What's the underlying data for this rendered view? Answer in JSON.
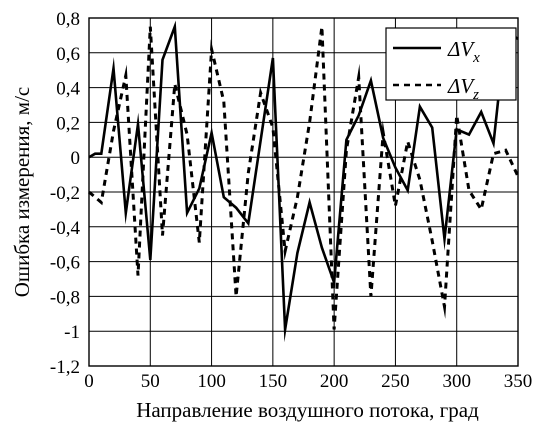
{
  "chart_data": {
    "type": "line",
    "xlabel": "Направление воздушного потока, град",
    "ylabel": "Ошибка измерения, м/с",
    "xlim": [
      0,
      350
    ],
    "ylim": [
      -1.2,
      0.8
    ],
    "x_ticks": [
      "0",
      "50",
      "100",
      "150",
      "200",
      "250",
      "300",
      "350"
    ],
    "y_ticks": [
      "0,8",
      "0,6",
      "0,4",
      "0,2",
      "0",
      "-0,2",
      "-0,4",
      "-0,6",
      "-0,8",
      "-1",
      "-1,2"
    ],
    "grid": true,
    "legend_position": "top-right",
    "series": [
      {
        "name": "ΔVx",
        "style": "solid",
        "color": "#000000",
        "points": [
          [
            0,
            0.0
          ],
          [
            5,
            0.02
          ],
          [
            10,
            0.02
          ],
          [
            20,
            0.51
          ],
          [
            30,
            -0.32
          ],
          [
            40,
            0.19
          ],
          [
            50,
            -0.59
          ],
          [
            60,
            0.56
          ],
          [
            70,
            0.75
          ],
          [
            80,
            -0.32
          ],
          [
            90,
            -0.18
          ],
          [
            100,
            0.14
          ],
          [
            110,
            -0.23
          ],
          [
            120,
            -0.29
          ],
          [
            130,
            -0.38
          ],
          [
            150,
            0.57
          ],
          [
            160,
            -0.99
          ],
          [
            170,
            -0.55
          ],
          [
            180,
            -0.26
          ],
          [
            190,
            -0.52
          ],
          [
            200,
            -0.72
          ],
          [
            210,
            0.1
          ],
          [
            220,
            0.24
          ],
          [
            230,
            0.44
          ],
          [
            240,
            0.11
          ],
          [
            250,
            -0.06
          ],
          [
            260,
            -0.19
          ],
          [
            270,
            0.29
          ],
          [
            280,
            0.17
          ],
          [
            290,
            -0.47
          ],
          [
            300,
            0.16
          ],
          [
            310,
            0.13
          ],
          [
            320,
            0.26
          ],
          [
            330,
            0.08
          ],
          [
            340,
            0.73
          ],
          [
            350,
            0.68
          ]
        ]
      },
      {
        "name": "ΔVz",
        "style": "dashed",
        "color": "#000000",
        "points": [
          [
            0,
            -0.2
          ],
          [
            10,
            -0.26
          ],
          [
            20,
            0.15
          ],
          [
            30,
            0.47
          ],
          [
            40,
            -0.68
          ],
          [
            50,
            0.75
          ],
          [
            60,
            -0.45
          ],
          [
            70,
            0.42
          ],
          [
            80,
            0.13
          ],
          [
            90,
            -0.49
          ],
          [
            100,
            0.62
          ],
          [
            110,
            0.32
          ],
          [
            120,
            -0.8
          ],
          [
            130,
            -0.09
          ],
          [
            140,
            0.37
          ],
          [
            150,
            0.17
          ],
          [
            160,
            -0.54
          ],
          [
            170,
            -0.23
          ],
          [
            180,
            0.2
          ],
          [
            190,
            0.75
          ],
          [
            200,
            -0.99
          ],
          [
            210,
            0.04
          ],
          [
            220,
            0.46
          ],
          [
            230,
            -0.8
          ],
          [
            240,
            0.14
          ],
          [
            250,
            -0.28
          ],
          [
            260,
            0.09
          ],
          [
            270,
            -0.13
          ],
          [
            280,
            -0.48
          ],
          [
            290,
            -0.86
          ],
          [
            300,
            0.24
          ],
          [
            310,
            -0.19
          ],
          [
            320,
            -0.3
          ],
          [
            330,
            0.02
          ],
          [
            340,
            0.04
          ],
          [
            350,
            -0.11
          ]
        ]
      }
    ]
  },
  "legend": {
    "items": [
      {
        "base": "ΔV",
        "sub": "x"
      },
      {
        "base": "ΔV",
        "sub": "z"
      }
    ]
  }
}
